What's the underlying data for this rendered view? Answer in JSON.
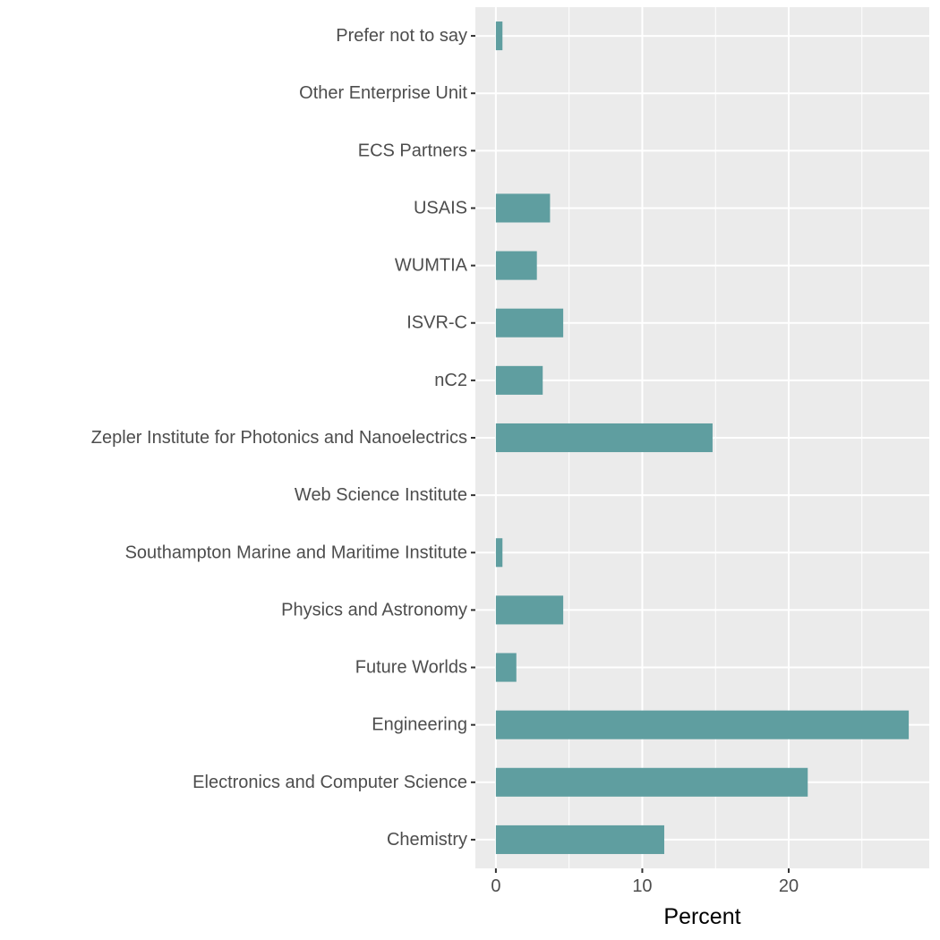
{
  "chart_data": {
    "type": "bar",
    "orientation": "horizontal",
    "categories": [
      "Chemistry",
      "Electronics and Computer Science",
      "Engineering",
      "Future Worlds",
      "Physics and Astronomy",
      "Southampton Marine and Maritime Institute",
      "Web Science Institute",
      "Zepler Institute for Photonics and Nanoelectrics",
      "nC2",
      "ISVR-C",
      "WUMTIA",
      "USAIS",
      "ECS Partners",
      "Other Enterprise Unit",
      "Prefer not to say"
    ],
    "values": [
      11.5,
      21.3,
      28.2,
      1.4,
      4.6,
      0.45,
      0,
      14.8,
      3.2,
      4.6,
      2.8,
      3.7,
      0,
      0,
      0.45
    ],
    "xlabel": "Percent",
    "ylabel": "",
    "xlim": [
      -1.4,
      29.6
    ],
    "xticks": [
      0,
      10,
      20
    ],
    "xtick_labels": [
      "0",
      "10",
      "20"
    ],
    "grid": true,
    "legend": "none",
    "bar_color": "#5f9ea0",
    "panel_color": "#ebebeb",
    "grid_color": "#ffffff"
  }
}
